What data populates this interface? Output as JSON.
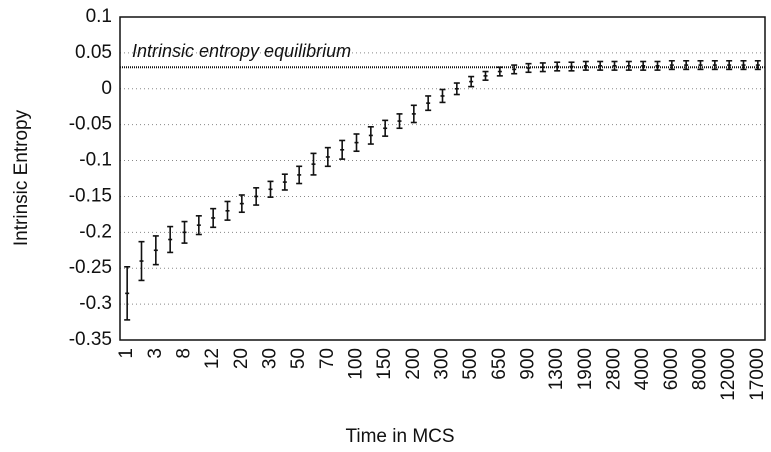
{
  "chart_data": {
    "type": "errorbar",
    "xlabel": "Time in MCS",
    "ylabel": "Intrinsic Entropy",
    "categories": [
      "1",
      null,
      "3",
      null,
      "8",
      null,
      "12",
      null,
      "20",
      null,
      "30",
      null,
      "50",
      null,
      "70",
      null,
      "100",
      null,
      "150",
      null,
      "200",
      null,
      "300",
      null,
      "500",
      null,
      "650",
      null,
      "900",
      null,
      "1300",
      null,
      "1900",
      null,
      "2800",
      null,
      "4000",
      null,
      "6000",
      null,
      "8000",
      null,
      "12000",
      null,
      "17000"
    ],
    "values": [
      -0.285,
      -0.24,
      -0.225,
      -0.21,
      -0.2,
      -0.19,
      -0.18,
      -0.17,
      -0.16,
      -0.15,
      -0.14,
      -0.13,
      -0.12,
      -0.105,
      -0.095,
      -0.085,
      -0.075,
      -0.065,
      -0.055,
      -0.045,
      -0.035,
      -0.02,
      -0.01,
      0.0,
      0.01,
      0.018,
      0.024,
      0.027,
      0.029,
      0.03,
      0.031,
      0.031,
      0.032,
      0.032,
      0.032,
      0.032,
      0.032,
      0.032,
      0.033,
      0.033,
      0.033,
      0.033,
      0.033,
      0.033,
      0.033
    ],
    "errors": [
      0.037,
      0.027,
      0.02,
      0.018,
      0.015,
      0.013,
      0.013,
      0.013,
      0.012,
      0.012,
      0.011,
      0.011,
      0.012,
      0.015,
      0.013,
      0.013,
      0.012,
      0.012,
      0.011,
      0.01,
      0.012,
      0.01,
      0.009,
      0.008,
      0.007,
      0.006,
      0.006,
      0.006,
      0.006,
      0.006,
      0.006,
      0.006,
      0.006,
      0.006,
      0.006,
      0.006,
      0.006,
      0.006,
      0.006,
      0.006,
      0.006,
      0.006,
      0.006,
      0.006,
      0.006
    ],
    "color": "#111111",
    "ylim": [
      -0.35,
      0.1
    ],
    "yticks": [
      -0.35,
      -0.3,
      -0.25,
      -0.2,
      -0.15,
      -0.1,
      -0.05,
      0,
      0.05,
      0.1
    ],
    "grid": true,
    "equilibrium": {
      "label": "Intrinsic entropy equilibrium",
      "value": 0.03
    }
  }
}
